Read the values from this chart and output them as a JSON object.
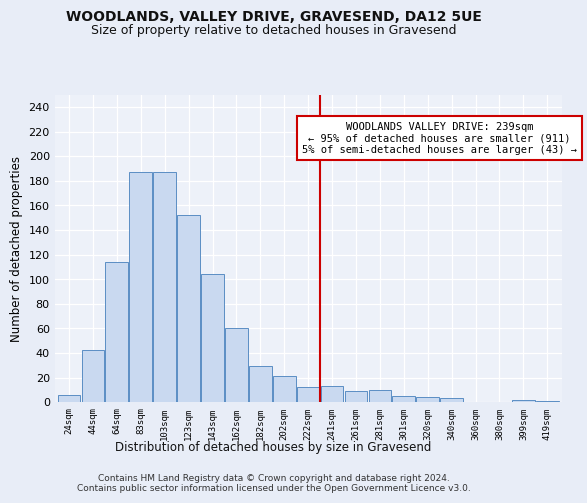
{
  "title": "WOODLANDS, VALLEY DRIVE, GRAVESEND, DA12 5UE",
  "subtitle": "Size of property relative to detached houses in Gravesend",
  "xlabel": "Distribution of detached houses by size in Gravesend",
  "ylabel": "Number of detached properties",
  "bar_labels": [
    "24sqm",
    "44sqm",
    "64sqm",
    "83sqm",
    "103sqm",
    "123sqm",
    "143sqm",
    "162sqm",
    "182sqm",
    "202sqm",
    "222sqm",
    "241sqm",
    "261sqm",
    "281sqm",
    "301sqm",
    "320sqm",
    "340sqm",
    "360sqm",
    "380sqm",
    "399sqm",
    "419sqm"
  ],
  "bar_values": [
    6,
    42,
    114,
    187,
    187,
    152,
    104,
    60,
    29,
    21,
    12,
    13,
    9,
    10,
    5,
    4,
    3,
    0,
    0,
    2,
    1
  ],
  "bar_color": "#c9d9f0",
  "bar_edge_color": "#5b8ec4",
  "vline_x": 10.5,
  "vline_color": "#cc0000",
  "annotation_text": "WOODLANDS VALLEY DRIVE: 239sqm\n← 95% of detached houses are smaller (911)\n5% of semi-detached houses are larger (43) →",
  "ylim": [
    0,
    250
  ],
  "yticks": [
    0,
    20,
    40,
    60,
    80,
    100,
    120,
    140,
    160,
    180,
    200,
    220,
    240
  ],
  "bg_color": "#e8edf7",
  "plot_bg_color": "#edf1f9",
  "grid_color": "#ffffff",
  "footer": "Contains HM Land Registry data © Crown copyright and database right 2024.\nContains public sector information licensed under the Open Government Licence v3.0."
}
